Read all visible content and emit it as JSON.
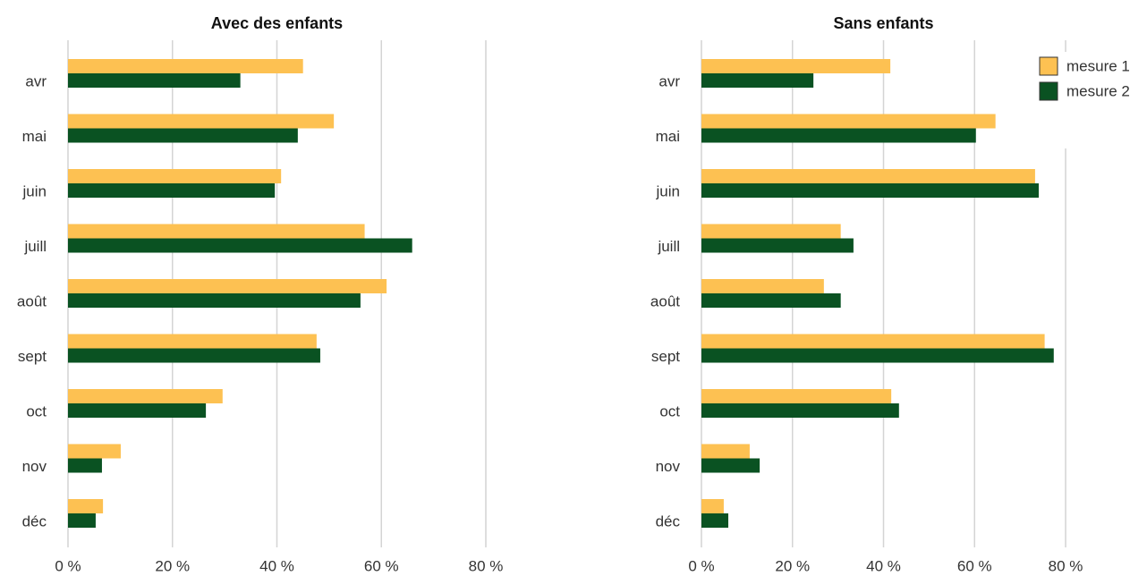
{
  "chart_data": [
    {
      "type": "bar",
      "title": "Avec des enfants",
      "categories": [
        "avr",
        "mai",
        "juin",
        "juill",
        "août",
        "sept",
        "oct",
        "nov",
        "déc"
      ],
      "series": [
        {
          "name": "mesure 1",
          "color": "#fdc152",
          "values": [
            45.0,
            50.9,
            40.8,
            56.8,
            61.0,
            47.6,
            29.6,
            10.1,
            6.7
          ]
        },
        {
          "name": "mesure 2",
          "color": "#0a5222",
          "values": [
            33.0,
            44.0,
            39.6,
            65.9,
            56.0,
            48.3,
            26.4,
            6.5,
            5.3
          ]
        }
      ],
      "xlim": [
        0,
        80
      ],
      "xticks": [
        {
          "value": 0,
          "label": "0 %"
        },
        {
          "value": 20,
          "label": "20 %"
        },
        {
          "value": 40,
          "label": "40 %"
        },
        {
          "value": 60,
          "label": "60 %"
        },
        {
          "value": 80,
          "label": "80 %"
        }
      ],
      "grid": true
    },
    {
      "type": "bar",
      "title": "Sans enfants",
      "categories": [
        "avr",
        "mai",
        "juin",
        "juill",
        "août",
        "sept",
        "oct",
        "nov",
        "déc"
      ],
      "series": [
        {
          "name": "mesure 1",
          "color": "#fdc152",
          "values": [
            41.5,
            64.6,
            73.3,
            30.6,
            26.9,
            75.4,
            41.7,
            10.6,
            4.9
          ]
        },
        {
          "name": "mesure 2",
          "color": "#0a5222",
          "values": [
            24.6,
            60.3,
            74.1,
            33.4,
            30.6,
            77.4,
            43.4,
            12.8,
            5.9
          ]
        }
      ],
      "xlim": [
        0,
        80
      ],
      "xticks": [
        {
          "value": 0,
          "label": "0 %"
        },
        {
          "value": 20,
          "label": "20 %"
        },
        {
          "value": 40,
          "label": "40 %"
        },
        {
          "value": 60,
          "label": "60 %"
        },
        {
          "value": 80,
          "label": "80 %"
        }
      ],
      "grid": true,
      "legend": "top-right"
    }
  ]
}
